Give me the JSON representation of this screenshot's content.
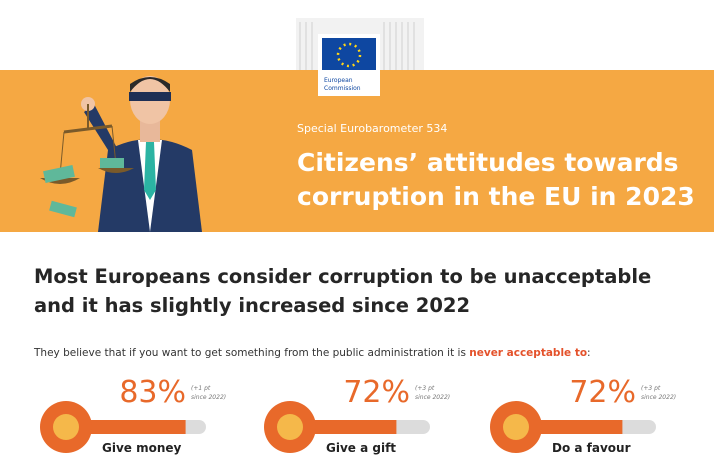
{
  "header": {
    "logo_lines": [
      "European",
      "Commission"
    ],
    "kicker": "Special Eurobarometer 534",
    "title_lines": [
      "Citizens’ attitudes towards",
      "corruption in the EU in 2023"
    ]
  },
  "headline_lines": [
    "Most Europeans consider corruption to be unacceptable",
    "and it has slightly increased since 2022"
  ],
  "intro": {
    "text": "They believe that if you want to get something from the public administration it is ",
    "emphasis": "never acceptable to",
    "end": ":"
  },
  "items": [
    {
      "value": 83,
      "value_label": "83%",
      "note_lines": [
        "(+1 pt",
        "since 2022)"
      ],
      "caption": "Give money"
    },
    {
      "value": 72,
      "value_label": "72%",
      "note_lines": [
        "(+3 pt",
        "since 2022)"
      ],
      "caption": "Give a gift"
    },
    {
      "value": 72,
      "value_label": "72%",
      "note_lines": [
        "(+3 pt",
        "since 2022)"
      ],
      "caption": "Do a favour"
    }
  ]
}
